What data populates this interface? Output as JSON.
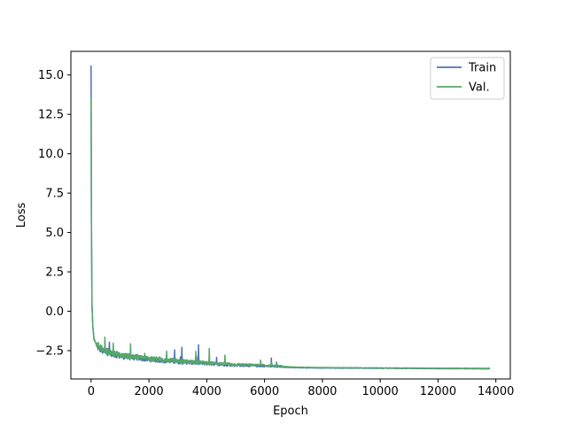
{
  "chart_data": {
    "type": "line",
    "title": "",
    "xlabel": "Epoch",
    "ylabel": "Loss",
    "xlim": [
      -700,
      14500
    ],
    "ylim": [
      -4.3,
      16.5
    ],
    "xticks": [
      0,
      2000,
      4000,
      6000,
      8000,
      10000,
      12000,
      14000
    ],
    "xtick_labels": [
      "0",
      "2000",
      "4000",
      "6000",
      "8000",
      "10000",
      "12000",
      "14000"
    ],
    "yticks": [
      -2.5,
      0.0,
      2.5,
      5.0,
      7.5,
      10.0,
      12.5,
      15.0
    ],
    "ytick_labels": [
      "−2.5",
      "0.0",
      "2.5",
      "5.0",
      "7.5",
      "10.0",
      "12.5",
      "15.0"
    ],
    "legend_position": "top-right",
    "grid": false,
    "series": [
      {
        "name": "Train",
        "color": "#4c72b0",
        "x": [
          0,
          10,
          30,
          60,
          100,
          200,
          400,
          700,
          1000,
          1500,
          2000,
          3000,
          4000,
          5000,
          6000,
          6600,
          7000,
          8000,
          10000,
          12000,
          13800
        ],
        "y": [
          15.6,
          6.0,
          0.5,
          -1.0,
          -1.8,
          -2.3,
          -2.6,
          -2.75,
          -2.9,
          -3.0,
          -3.1,
          -3.25,
          -3.35,
          -3.45,
          -3.5,
          -3.55,
          -3.58,
          -3.6,
          -3.62,
          -3.64,
          -3.65
        ]
      },
      {
        "name": "Val.",
        "color": "#55a868",
        "x": [
          0,
          10,
          30,
          60,
          100,
          200,
          400,
          700,
          1000,
          1500,
          2000,
          3000,
          4000,
          5000,
          6000,
          6600,
          7000,
          8000,
          10000,
          12000,
          13800
        ],
        "y": [
          13.5,
          5.5,
          0.4,
          -1.0,
          -1.7,
          -2.2,
          -2.5,
          -2.7,
          -2.85,
          -2.95,
          -3.05,
          -3.2,
          -3.3,
          -3.4,
          -3.45,
          -3.5,
          -3.55,
          -3.58,
          -3.6,
          -3.62,
          -3.63
        ]
      }
    ]
  }
}
